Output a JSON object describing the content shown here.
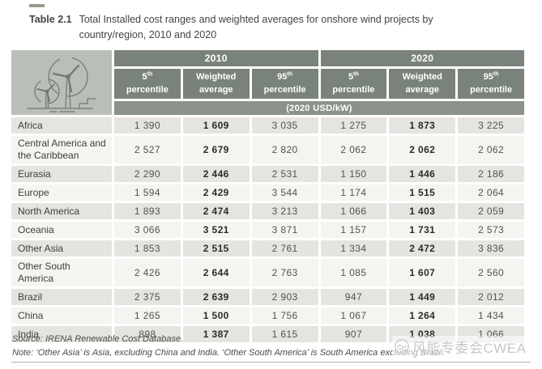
{
  "title": {
    "label": "Table 2.1",
    "text": "Total Installed cost ranges and weighted averages for onshore wind projects by country/region, 2010 and 2020"
  },
  "table": {
    "year_groups": [
      "2010",
      "2020"
    ],
    "columns": [
      {
        "main": "5",
        "sup": "th",
        "line2": "percentile"
      },
      {
        "main": "Weighted",
        "sup": "",
        "line2": "average"
      },
      {
        "main": "95",
        "sup": "th",
        "line2": "percentile"
      },
      {
        "main": "5",
        "sup": "th",
        "line2": "percentile"
      },
      {
        "main": "Weighted",
        "sup": "",
        "line2": "average"
      },
      {
        "main": "95",
        "sup": "th",
        "line2": "percentile"
      }
    ],
    "unit": "(2020 USD/kW)",
    "rows": [
      {
        "region": "Africa",
        "values": [
          "1 390",
          "1 609",
          "3 035",
          "1 275",
          "1 873",
          "3 225"
        ]
      },
      {
        "region": "Central America and the Caribbean",
        "values": [
          "2 527",
          "2 679",
          "2 820",
          "2 062",
          "2 062",
          "2 062"
        ]
      },
      {
        "region": "Eurasia",
        "values": [
          "2 290",
          "2 446",
          "2 531",
          "1 150",
          "1 446",
          "2 186"
        ]
      },
      {
        "region": "Europe",
        "values": [
          "1 594",
          "2 429",
          "3 544",
          "1 174",
          "1 515",
          "2 064"
        ]
      },
      {
        "region": "North America",
        "values": [
          "1 893",
          "2 474",
          "3 213",
          "1 066",
          "1 403",
          "2 059"
        ]
      },
      {
        "region": "Oceania",
        "values": [
          "3 066",
          "3 521",
          "3 871",
          "1 157",
          "1 731",
          "2 573"
        ]
      },
      {
        "region": "Other Asia",
        "values": [
          "1 853",
          "2 515",
          "2 761",
          "1 334",
          "2 472",
          "3 836"
        ]
      },
      {
        "region": "Other South America",
        "values": [
          "2 426",
          "2 644",
          "2 763",
          "1 085",
          "1 607",
          "2 560"
        ]
      },
      {
        "region": "Brazil",
        "values": [
          "2 375",
          "2 639",
          "2 903",
          "947",
          "1 449",
          "2 012"
        ]
      },
      {
        "region": "China",
        "values": [
          "1 265",
          "1 500",
          "1 756",
          "1 067",
          "1 264",
          "1 434"
        ]
      },
      {
        "region": "India",
        "values": [
          "898",
          "1 387",
          "1 615",
          "907",
          "1 038",
          "1 066"
        ]
      }
    ]
  },
  "footer": {
    "source": "Source: IRENA Renewable Cost Database.",
    "note": "Note: ‘Other Asia’ is Asia, excluding China and India. ‘Other South America’ is South America excluding Brazil."
  },
  "watermark": {
    "text": "风能专委会CWEA"
  },
  "colors": {
    "header_bg": "#7a837b",
    "unit_band_bg": "#8b9289",
    "icon_cell_bg": "#b9beb8",
    "row_shaded_bg": "#e5e4e0",
    "row_plain_bg": "#f5f4f1",
    "title_accent_dash": "#9b988b",
    "header_text": "#ffffff"
  }
}
